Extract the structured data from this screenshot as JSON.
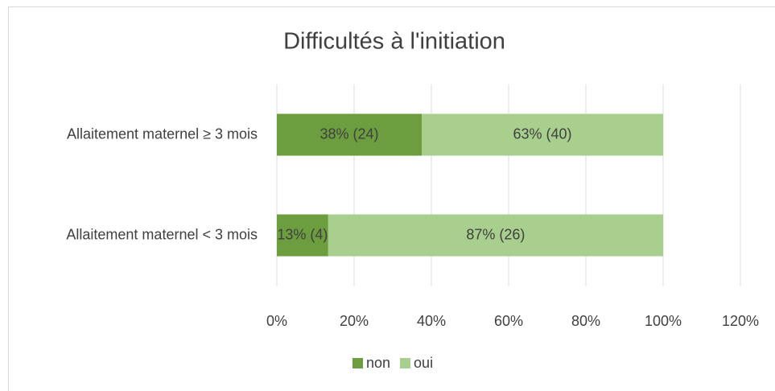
{
  "chart_data": {
    "type": "stacked-barh",
    "title": "Difficultés à l'initiation",
    "categories": [
      "Allaitement maternel ≥ 3 mois",
      "Allaitement maternel < 3 mois"
    ],
    "series": [
      {
        "name": "non",
        "color": "#6c9d3e",
        "values": [
          37.5,
          13.3
        ],
        "value_labels": [
          "38% (24)",
          "13% (4)"
        ]
      },
      {
        "name": "oui",
        "color": "#a8cf8d",
        "values": [
          62.5,
          86.7
        ],
        "value_labels": [
          "63% (40)",
          "87% (26)"
        ]
      }
    ],
    "xlim": [
      0,
      120
    ],
    "xticks": [
      {
        "value": 0,
        "label": "0%"
      },
      {
        "value": 20,
        "label": "20%"
      },
      {
        "value": 40,
        "label": "40%"
      },
      {
        "value": 60,
        "label": "60%"
      },
      {
        "value": 80,
        "label": "80%"
      },
      {
        "value": 100,
        "label": "100%"
      },
      {
        "value": 120,
        "label": "120%"
      }
    ],
    "grid": true,
    "legend": "bottom"
  }
}
